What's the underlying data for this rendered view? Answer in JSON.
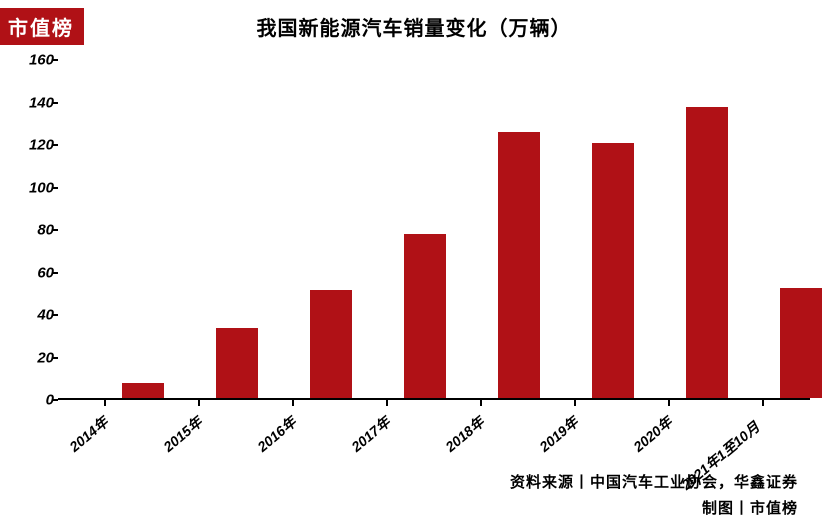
{
  "badge": {
    "text": "市值榜",
    "bg": "#b01116",
    "fg": "#ffffff"
  },
  "title": "我国新能源汽车销量变化（万辆）",
  "chart": {
    "type": "bar",
    "categories": [
      "2014年",
      "2015年",
      "2016年",
      "2017年",
      "2018年",
      "2019年",
      "2020年",
      "2021年1至10月"
    ],
    "values": [
      7,
      33,
      51,
      77,
      125,
      120,
      137,
      52
    ],
    "bar_color": "#b01116",
    "ylim": [
      0,
      160
    ],
    "ytick_step": 20,
    "bar_width_ratio": 0.45,
    "axis_color": "#000000",
    "background": "#ffffff",
    "label_fontsize": 14,
    "label_rotation": -40
  },
  "footer": {
    "source_line": "资料来源丨中国汽车工业协会，华鑫证券",
    "credit_line": "制图丨市值榜"
  }
}
